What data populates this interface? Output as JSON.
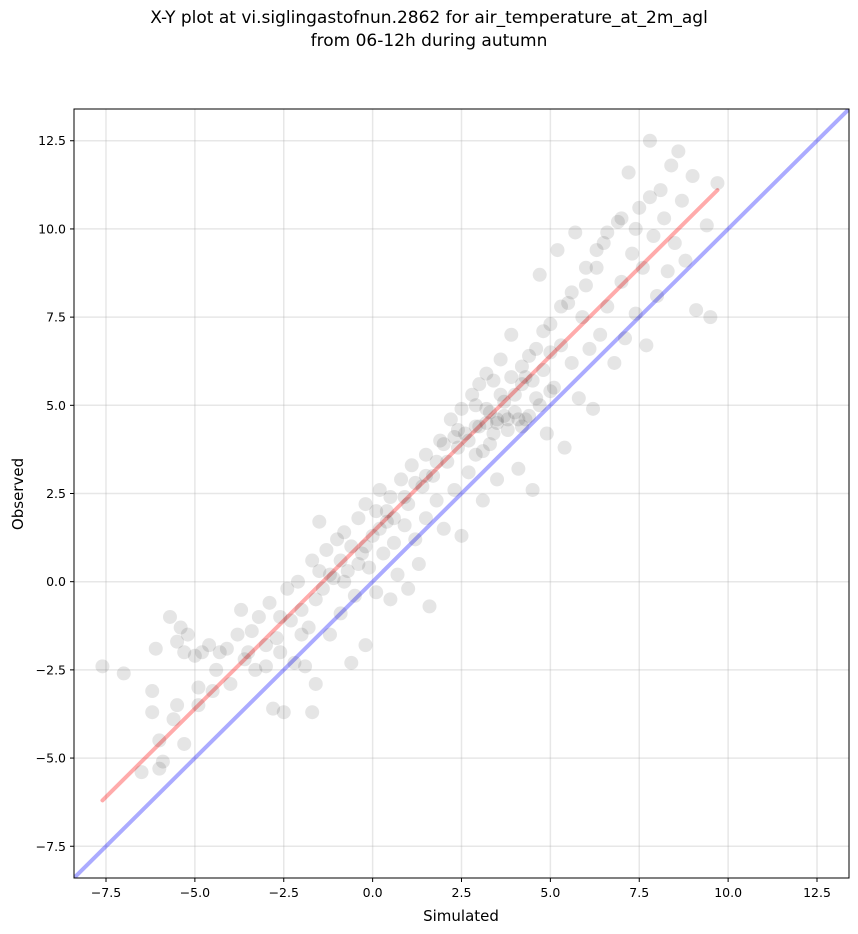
{
  "chart_data": {
    "type": "scatter",
    "title_line1": "X-Y plot at vi.siglingastofnun.2862 for air_temperature_at_2m_agl",
    "title_line2": "from 06-12h during autumn",
    "xlabel": "Simulated",
    "ylabel": "Observed",
    "xlim": [
      -8.4,
      13.4
    ],
    "ylim": [
      -8.4,
      13.4
    ],
    "xticks": [
      -7.5,
      -5.0,
      -2.5,
      0.0,
      2.5,
      5.0,
      7.5,
      10.0,
      12.5
    ],
    "yticks": [
      -7.5,
      -5.0,
      -2.5,
      0.0,
      2.5,
      5.0,
      7.5,
      10.0,
      12.5
    ],
    "xtick_labels": [
      "−7.5",
      "−5.0",
      "−2.5",
      "0.0",
      "2.5",
      "5.0",
      "7.5",
      "10.0",
      "12.5"
    ],
    "ytick_labels": [
      "−7.5",
      "−5.0",
      "−2.5",
      "0.0",
      "2.5",
      "5.0",
      "7.5",
      "10.0",
      "12.5"
    ],
    "grid": true,
    "point_color": "#000000",
    "point_alpha": 0.1,
    "identity_line": {
      "x": [
        -8.4,
        13.4
      ],
      "y": [
        -8.4,
        13.4
      ],
      "color": "#0000ff"
    },
    "fit_line": {
      "x": [
        -7.6,
        9.7
      ],
      "y": [
        -6.2,
        11.1
      ],
      "color": "#ff0000"
    },
    "points": [
      [
        -7.6,
        -2.4
      ],
      [
        -7.0,
        -2.6
      ],
      [
        -6.5,
        -5.4
      ],
      [
        -6.2,
        -3.1
      ],
      [
        -6.1,
        -1.9
      ],
      [
        -6.2,
        -3.7
      ],
      [
        -6.0,
        -4.5
      ],
      [
        -6.0,
        -5.3
      ],
      [
        -5.9,
        -5.1
      ],
      [
        -5.7,
        -1.0
      ],
      [
        -5.6,
        -3.9
      ],
      [
        -5.5,
        -1.7
      ],
      [
        -5.4,
        -1.3
      ],
      [
        -5.3,
        -4.6
      ],
      [
        -5.3,
        -2.0
      ],
      [
        -5.2,
        -1.5
      ],
      [
        -5.0,
        -2.1
      ],
      [
        -4.9,
        -3.5
      ],
      [
        -4.9,
        -3.0
      ],
      [
        -4.8,
        -2.0
      ],
      [
        -4.6,
        -1.8
      ],
      [
        -4.5,
        -3.1
      ],
      [
        -4.3,
        -2.0
      ],
      [
        -4.1,
        -1.9
      ],
      [
        -4.0,
        -2.9
      ],
      [
        -3.8,
        -1.5
      ],
      [
        -3.7,
        -0.8
      ],
      [
        -3.6,
        -2.2
      ],
      [
        -3.4,
        -1.4
      ],
      [
        -3.3,
        -2.5
      ],
      [
        -3.2,
        -1.0
      ],
      [
        -3.0,
        -2.4
      ],
      [
        -2.9,
        -0.6
      ],
      [
        -2.8,
        -3.6
      ],
      [
        -2.7,
        -1.6
      ],
      [
        -2.6,
        -2.0
      ],
      [
        -2.5,
        -3.7
      ],
      [
        -2.4,
        -0.2
      ],
      [
        -2.3,
        -1.1
      ],
      [
        -2.2,
        -2.3
      ],
      [
        -2.1,
        0.0
      ],
      [
        -2.0,
        -0.8
      ],
      [
        -1.9,
        -2.4
      ],
      [
        -1.8,
        -1.3
      ],
      [
        -1.7,
        -3.7
      ],
      [
        -1.7,
        0.6
      ],
      [
        -1.6,
        -2.9
      ],
      [
        -1.5,
        0.3
      ],
      [
        -1.5,
        1.7
      ],
      [
        -1.4,
        -0.2
      ],
      [
        -1.3,
        0.9
      ],
      [
        -1.2,
        -1.5
      ],
      [
        -1.1,
        0.1
      ],
      [
        -1.0,
        1.2
      ],
      [
        -0.9,
        -0.9
      ],
      [
        -0.9,
        0.6
      ],
      [
        -0.8,
        1.4
      ],
      [
        -0.7,
        0.3
      ],
      [
        -0.6,
        -2.3
      ],
      [
        -0.6,
        1.0
      ],
      [
        -0.5,
        -0.4
      ],
      [
        -0.4,
        1.8
      ],
      [
        -0.3,
        0.8
      ],
      [
        -0.2,
        2.2
      ],
      [
        -0.2,
        -1.8
      ],
      [
        -0.1,
        0.4
      ],
      [
        0.0,
        1.3
      ],
      [
        0.1,
        2.0
      ],
      [
        0.1,
        -0.3
      ],
      [
        0.2,
        2.6
      ],
      [
        0.3,
        0.8
      ],
      [
        0.4,
        1.7
      ],
      [
        0.5,
        -0.5
      ],
      [
        0.5,
        2.4
      ],
      [
        0.6,
        1.1
      ],
      [
        0.7,
        0.2
      ],
      [
        0.8,
        2.9
      ],
      [
        0.9,
        1.6
      ],
      [
        1.0,
        -0.2
      ],
      [
        1.0,
        2.2
      ],
      [
        1.1,
        3.3
      ],
      [
        1.2,
        1.2
      ],
      [
        1.3,
        0.5
      ],
      [
        1.4,
        2.7
      ],
      [
        1.5,
        3.6
      ],
      [
        1.5,
        1.8
      ],
      [
        1.6,
        -0.7
      ],
      [
        1.7,
        3.0
      ],
      [
        1.8,
        2.3
      ],
      [
        1.9,
        4.0
      ],
      [
        2.0,
        1.5
      ],
      [
        2.1,
        3.4
      ],
      [
        2.2,
        4.6
      ],
      [
        2.3,
        2.6
      ],
      [
        2.4,
        3.8
      ],
      [
        2.5,
        1.3
      ],
      [
        2.6,
        4.2
      ],
      [
        2.7,
        3.1
      ],
      [
        2.8,
        5.3
      ],
      [
        2.9,
        3.6
      ],
      [
        3.0,
        4.4
      ],
      [
        3.1,
        2.3
      ],
      [
        3.2,
        4.9
      ],
      [
        3.3,
        3.9
      ],
      [
        3.4,
        5.7
      ],
      [
        3.5,
        4.5
      ],
      [
        3.5,
        2.9
      ],
      [
        3.6,
        6.3
      ],
      [
        3.7,
        5.1
      ],
      [
        3.8,
        4.3
      ],
      [
        3.9,
        7.0
      ],
      [
        4.0,
        4.8
      ],
      [
        4.1,
        3.2
      ],
      [
        4.2,
        5.6
      ],
      [
        4.3,
        4.6
      ],
      [
        4.4,
        6.4
      ],
      [
        4.5,
        2.6
      ],
      [
        4.6,
        5.2
      ],
      [
        4.7,
        8.7
      ],
      [
        4.8,
        6.0
      ],
      [
        4.9,
        4.2
      ],
      [
        5.0,
        7.3
      ],
      [
        5.1,
        5.5
      ],
      [
        5.2,
        9.4
      ],
      [
        5.3,
        6.7
      ],
      [
        5.4,
        3.8
      ],
      [
        5.5,
        7.9
      ],
      [
        5.6,
        6.2
      ],
      [
        5.7,
        9.9
      ],
      [
        5.8,
        5.2
      ],
      [
        5.9,
        7.5
      ],
      [
        6.0,
        8.4
      ],
      [
        6.1,
        6.6
      ],
      [
        6.2,
        4.9
      ],
      [
        6.3,
        8.9
      ],
      [
        6.4,
        7.0
      ],
      [
        6.5,
        9.6
      ],
      [
        6.6,
        7.8
      ],
      [
        6.8,
        6.2
      ],
      [
        6.9,
        10.2
      ],
      [
        7.0,
        8.5
      ],
      [
        7.1,
        6.9
      ],
      [
        7.2,
        11.6
      ],
      [
        7.3,
        9.3
      ],
      [
        7.4,
        7.6
      ],
      [
        7.5,
        10.6
      ],
      [
        7.6,
        8.9
      ],
      [
        7.7,
        6.7
      ],
      [
        7.8,
        12.5
      ],
      [
        7.9,
        9.8
      ],
      [
        8.0,
        8.1
      ],
      [
        8.1,
        11.1
      ],
      [
        8.2,
        10.3
      ],
      [
        8.3,
        8.8
      ],
      [
        8.4,
        11.8
      ],
      [
        8.5,
        9.6
      ],
      [
        8.6,
        12.2
      ],
      [
        8.7,
        10.8
      ],
      [
        8.8,
        9.1
      ],
      [
        9.0,
        11.5
      ],
      [
        9.1,
        7.7
      ],
      [
        9.4,
        10.1
      ],
      [
        9.5,
        7.5
      ],
      [
        9.7,
        11.3
      ],
      [
        2.5,
        4.9
      ],
      [
        3.0,
        5.6
      ],
      [
        3.3,
        4.8
      ],
      [
        3.6,
        5.3
      ],
      [
        3.9,
        5.8
      ],
      [
        4.2,
        6.1
      ],
      [
        2.7,
        4.0
      ],
      [
        3.1,
        3.7
      ],
      [
        3.4,
        4.2
      ],
      [
        3.7,
        4.7
      ],
      [
        4.0,
        5.3
      ],
      [
        4.3,
        5.8
      ],
      [
        4.6,
        6.6
      ],
      [
        2.4,
        4.3
      ],
      [
        2.9,
        5.0
      ],
      [
        3.2,
        5.9
      ],
      [
        1.5,
        3.0
      ],
      [
        1.8,
        3.4
      ],
      [
        2.0,
        3.9
      ],
      [
        2.3,
        4.1
      ],
      [
        0.6,
        1.8
      ],
      [
        0.9,
        2.4
      ],
      [
        1.2,
        2.8
      ],
      [
        0.2,
        1.5
      ],
      [
        0.4,
        2.0
      ],
      [
        -0.2,
        1.0
      ],
      [
        4.8,
        7.1
      ],
      [
        5.0,
        6.5
      ],
      [
        5.3,
        7.8
      ],
      [
        5.6,
        8.2
      ],
      [
        6.0,
        8.9
      ],
      [
        6.3,
        9.4
      ],
      [
        6.6,
        9.9
      ],
      [
        7.0,
        10.3
      ],
      [
        7.4,
        10.0
      ],
      [
        7.8,
        10.9
      ],
      [
        3.5,
        4.6
      ],
      [
        3.8,
        4.6
      ],
      [
        4.1,
        4.6
      ],
      [
        4.4,
        4.7
      ],
      [
        3.2,
        4.5
      ],
      [
        2.9,
        4.4
      ],
      [
        4.7,
        5.0
      ],
      [
        5.0,
        5.4
      ],
      [
        4.5,
        5.7
      ],
      [
        4.2,
        4.4
      ],
      [
        -2.0,
        -1.5
      ],
      [
        -1.6,
        -0.5
      ],
      [
        -1.2,
        0.2
      ],
      [
        -0.8,
        0.0
      ],
      [
        -0.4,
        0.5
      ],
      [
        -3.0,
        -1.8
      ],
      [
        -2.6,
        -1.0
      ],
      [
        -3.5,
        -2.0
      ],
      [
        -4.4,
        -2.5
      ],
      [
        -5.5,
        -3.5
      ]
    ]
  }
}
